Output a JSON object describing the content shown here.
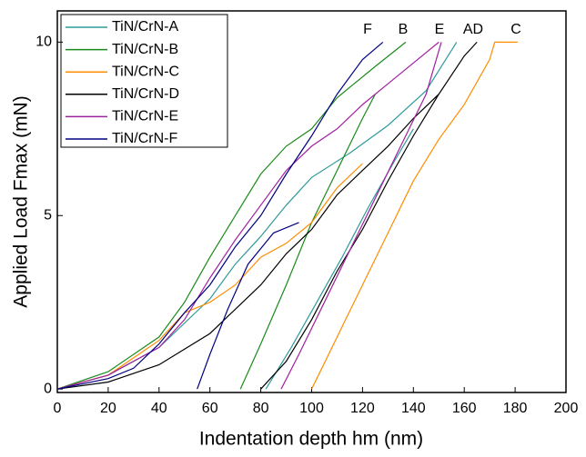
{
  "chart_data": {
    "type": "line",
    "x_label": "Indentation depth hm (nm)",
    "y_label": "Applied Load Fmax (mN)",
    "xlim": [
      0,
      200
    ],
    "xticks": [
      0,
      20,
      40,
      60,
      80,
      100,
      120,
      140,
      160,
      180,
      200
    ],
    "ylim": [
      -0.1,
      10.9
    ],
    "yticks": [
      0,
      5,
      10
    ],
    "annotations": [
      "F",
      "B",
      "E",
      "AD",
      "C"
    ],
    "series": [
      {
        "name": "TiN/CrN-A",
        "color": "#2f9a9a",
        "x": [
          0,
          20,
          40,
          60,
          70,
          80,
          90,
          100,
          115,
          130,
          145,
          157,
          null,
          82,
          92,
          102,
          112,
          122,
          132,
          140
        ],
        "values": [
          0,
          0.4,
          1.2,
          2.6,
          3.6,
          4.4,
          5.3,
          6.1,
          6.8,
          7.6,
          8.6,
          10,
          null,
          0,
          1.2,
          2.5,
          3.8,
          5.2,
          6.5,
          7.5
        ]
      },
      {
        "name": "TiN/CrN-B",
        "color": "#1a8a1a",
        "x": [
          0,
          20,
          40,
          50,
          60,
          70,
          80,
          90,
          100,
          110,
          125,
          137,
          null,
          72,
          80,
          90,
          100,
          110,
          120,
          125
        ],
        "values": [
          0,
          0.5,
          1.5,
          2.5,
          3.8,
          5,
          6.2,
          7,
          7.5,
          8.4,
          9.3,
          10,
          null,
          0,
          1.3,
          3,
          4.8,
          6.3,
          7.8,
          8.5
        ]
      },
      {
        "name": "TiN/CrN-C",
        "color": "#ff8c00",
        "x": [
          0,
          20,
          40,
          50,
          60,
          70,
          80,
          90,
          100,
          110,
          120,
          null,
          100,
          110,
          120,
          130,
          140,
          150,
          160,
          170,
          172,
          181
        ],
        "values": [
          0,
          0.4,
          1.4,
          2.2,
          2.5,
          3,
          3.8,
          4.2,
          4.8,
          5.8,
          6.5,
          null,
          0,
          1.5,
          3,
          4.5,
          6,
          7.2,
          8.2,
          9.5,
          10,
          10
        ]
      },
      {
        "name": "TiN/CrN-D",
        "color": "#000000",
        "x": [
          0,
          20,
          40,
          60,
          80,
          90,
          100,
          110,
          120,
          130,
          140,
          150,
          160,
          165,
          null,
          80,
          90,
          100,
          110,
          120,
          130,
          140,
          150,
          160
        ],
        "values": [
          0,
          0.2,
          0.7,
          1.6,
          3,
          3.9,
          4.6,
          5.6,
          6.3,
          7,
          7.8,
          8.5,
          9.6,
          10,
          null,
          0,
          0.8,
          2,
          3.4,
          4.6,
          6,
          7.3,
          8.5,
          9.6
        ]
      },
      {
        "name": "TiN/CrN-E",
        "color": "#a020a0",
        "x": [
          0,
          20,
          40,
          50,
          60,
          70,
          80,
          90,
          100,
          110,
          120,
          130,
          140,
          150,
          null,
          88,
          95,
          105,
          115,
          125,
          135,
          145,
          151
        ],
        "values": [
          0,
          0.4,
          1.2,
          2,
          3.2,
          4.3,
          5.3,
          6.3,
          7,
          7.5,
          8.2,
          8.8,
          9.4,
          10,
          null,
          0,
          1,
          2.5,
          4,
          5.5,
          7,
          8.5,
          10
        ]
      },
      {
        "name": "TiN/CrN-F",
        "color": "#000080",
        "x": [
          0,
          20,
          30,
          40,
          50,
          60,
          70,
          80,
          90,
          100,
          110,
          120,
          128,
          null,
          55,
          60,
          67,
          75,
          85,
          95
        ],
        "values": [
          0,
          0.3,
          0.6,
          1.3,
          2.2,
          3,
          4.1,
          5,
          6.2,
          7.3,
          8.5,
          9.5,
          10,
          null,
          0,
          1,
          2.3,
          3.6,
          4.5,
          4.8
        ]
      }
    ]
  }
}
